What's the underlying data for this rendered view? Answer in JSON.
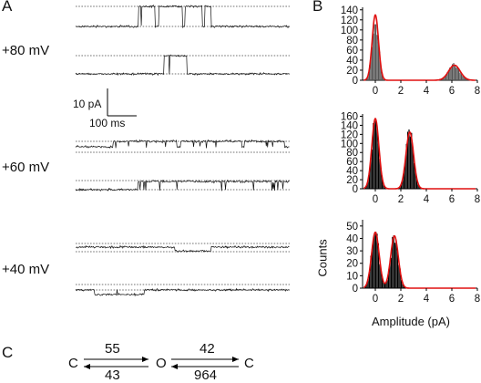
{
  "panels": {
    "a": "A",
    "b": "B",
    "c": "C"
  },
  "voltages": [
    "+80 mV",
    "+60 mV",
    "+40 mV"
  ],
  "scalebar": {
    "current": "10 pA",
    "time": "100 ms"
  },
  "histograms": {
    "ylabel": "Counts",
    "xlabel": "Amplitude (pA)",
    "x_ticks": [
      "0",
      "2",
      "4",
      "6",
      "8"
    ],
    "y_ticks": [
      [
        "0",
        "20",
        "40",
        "60",
        "80",
        "100",
        "120",
        "140"
      ],
      [
        "0",
        "20",
        "40",
        "60",
        "80",
        "100",
        "120",
        "140",
        "160"
      ],
      [
        "0",
        "10",
        "20",
        "30",
        "40",
        "50"
      ]
    ]
  },
  "scheme": {
    "state_left": "C",
    "state_middle": "O",
    "state_right": "C",
    "k_co": "55",
    "k_oc": "43",
    "k_oc2": "42",
    "k_c2o": "964"
  },
  "chart_data": [
    {
      "type": "bar",
      "title": "",
      "xlabel": "",
      "ylabel": "",
      "xlim": [
        -1,
        8
      ],
      "ylim": [
        0,
        145
      ],
      "x_ticks": [
        0,
        2,
        4,
        6,
        8
      ],
      "y_ticks": [
        0,
        20,
        40,
        60,
        80,
        100,
        120,
        140
      ],
      "peaks": [
        {
          "x": 0.0,
          "sigma": 0.25,
          "height": 130
        },
        {
          "x": 6.2,
          "sigma": 0.45,
          "height": 30
        }
      ],
      "fit": "red"
    },
    {
      "type": "bar",
      "title": "",
      "xlabel": "",
      "ylabel": "",
      "xlim": [
        -1,
        8
      ],
      "ylim": [
        0,
        165
      ],
      "x_ticks": [
        0,
        2,
        4,
        6,
        8
      ],
      "y_ticks": [
        0,
        20,
        40,
        60,
        80,
        100,
        120,
        140,
        160
      ],
      "peaks": [
        {
          "x": 0.0,
          "sigma": 0.28,
          "height": 155
        },
        {
          "x": 2.7,
          "sigma": 0.3,
          "height": 125
        }
      ],
      "fit": "red"
    },
    {
      "type": "bar",
      "title": "",
      "xlabel": "Amplitude (pA)",
      "ylabel": "Counts",
      "xlim": [
        -1,
        8
      ],
      "ylim": [
        0,
        55
      ],
      "x_ticks": [
        0,
        2,
        4,
        6,
        8
      ],
      "y_ticks": [
        0,
        10,
        20,
        30,
        40,
        50
      ],
      "peaks": [
        {
          "x": 0.0,
          "sigma": 0.3,
          "height": 45
        },
        {
          "x": 1.5,
          "sigma": 0.3,
          "height": 42
        }
      ],
      "fit": "red"
    }
  ]
}
